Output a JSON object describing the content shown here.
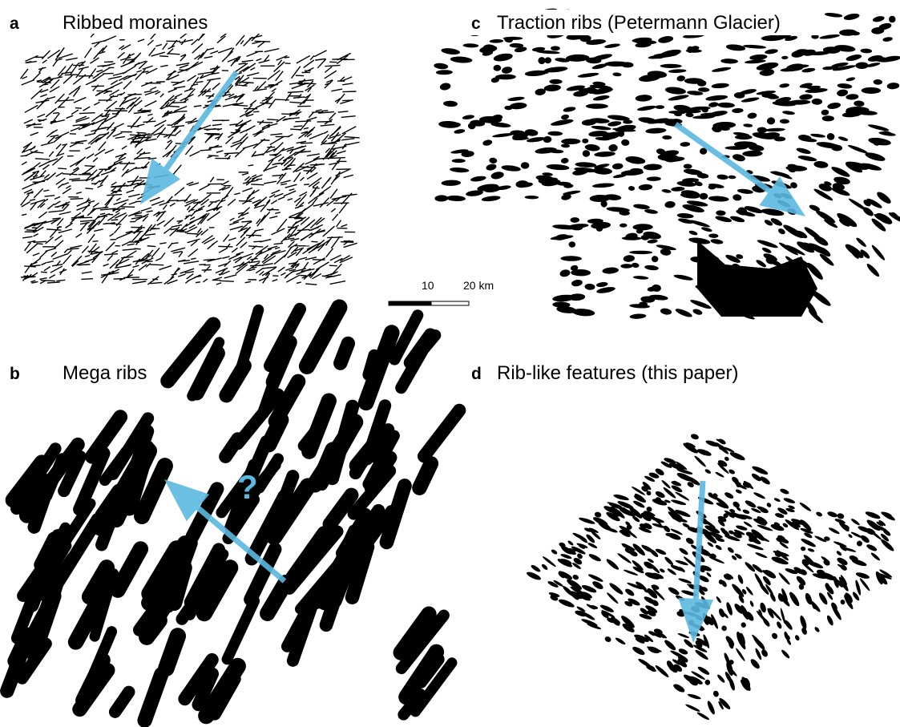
{
  "panels": [
    {
      "letter": "a",
      "title": "Ribbed moraines"
    },
    {
      "letter": "c",
      "title": "Traction ribs (Petermann Glacier)"
    },
    {
      "letter": "b",
      "title": "Mega ribs"
    },
    {
      "letter": "d",
      "title": "Rib-like features (this paper)"
    }
  ],
  "scale_bar": {
    "labels": [
      "10",
      "20 km"
    ]
  },
  "question_mark": "?"
}
